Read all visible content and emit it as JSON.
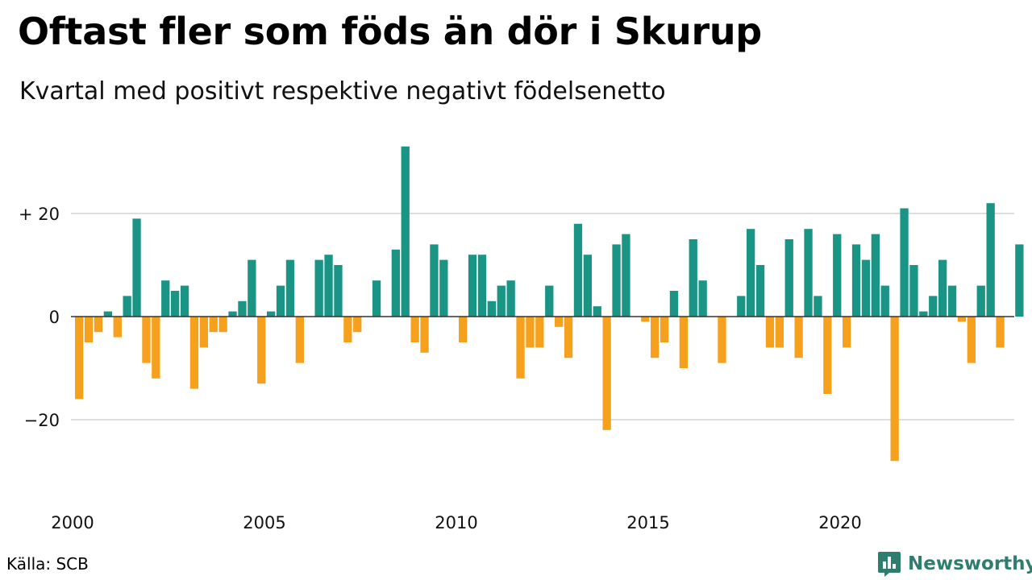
{
  "title": "Oftast fler som föds än dör i Skurup",
  "subtitle": "Kvartal med positivt respektive negativt födelsenetto",
  "source": "Källa: SCB",
  "brand": {
    "name": "Newsworthy",
    "logo_icon": "newsworthy-logo-icon"
  },
  "colors": {
    "positive": "#1a9485",
    "negative": "#f5a11e",
    "grid": "#dddddd",
    "zero_line": "#333333"
  },
  "chart_data": {
    "type": "bar",
    "title": "Oftast fler som föds än dör i Skurup",
    "subtitle": "Kvartal med positivt respektive negativt födelsenetto",
    "xlabel": "",
    "ylabel": "",
    "x_ticks": [
      "2000",
      "2005",
      "2010",
      "2015",
      "2020"
    ],
    "y_ticks": [
      {
        "value": 20,
        "label": "+ 20"
      },
      {
        "value": 0,
        "label": "0"
      },
      {
        "value": -20,
        "label": "−20"
      }
    ],
    "ylim": [
      -33,
      37
    ],
    "grid": true,
    "start_year": 2000,
    "periods_per_year": 4,
    "series": [
      {
        "values": [
          -16,
          -5,
          -3,
          1,
          -4,
          4,
          19,
          -9,
          -12,
          7,
          5,
          6,
          -14,
          -6,
          -3,
          -3,
          1,
          3,
          11,
          -13,
          1,
          6,
          11,
          -9,
          0,
          11,
          12,
          10,
          -5,
          -3,
          0,
          7,
          0,
          13,
          33,
          -5,
          -7,
          14,
          11,
          0,
          -5,
          12,
          12,
          3,
          6,
          7,
          -12,
          -6,
          -6,
          6,
          -2,
          -8,
          18,
          12,
          2,
          -22,
          14,
          16,
          0,
          -1,
          -8,
          -5,
          5,
          -10,
          15,
          7,
          0,
          -9,
          0,
          4,
          17,
          10,
          -6,
          -6,
          15,
          -8,
          17,
          4,
          -15,
          16,
          -6,
          14,
          11,
          16,
          6,
          -28,
          21,
          10,
          1,
          4,
          11,
          6,
          -1,
          -9,
          6,
          22,
          -6,
          0,
          14
        ]
      }
    ]
  }
}
